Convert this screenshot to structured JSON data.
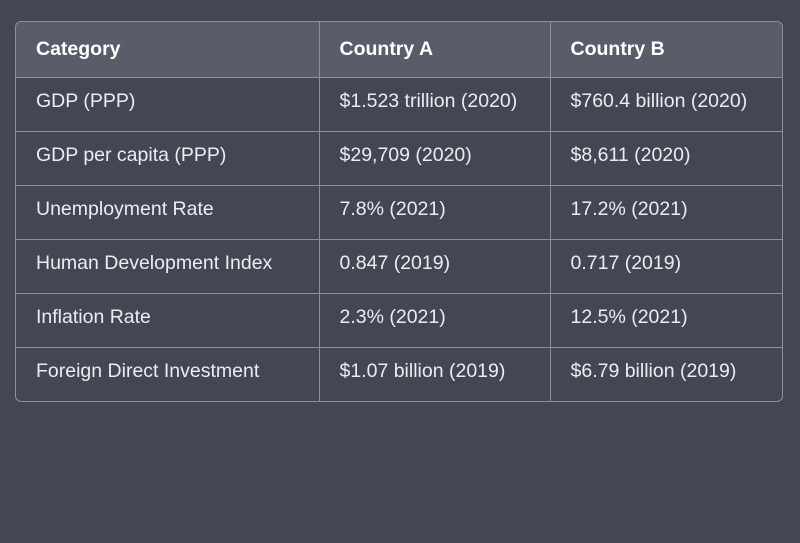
{
  "table": {
    "headers": [
      "Category",
      "Country A",
      "Country B"
    ],
    "rows": [
      [
        "GDP (PPP)",
        "$1.523 trillion (2020)",
        "$760.4 billion (2020)"
      ],
      [
        "GDP per capita (PPP)",
        "$29,709 (2020)",
        "$8,611 (2020)"
      ],
      [
        "Unemployment Rate",
        "7.8% (2021)",
        "17.2% (2021)"
      ],
      [
        "Human Development Index",
        "0.847 (2019)",
        "0.717 (2019)"
      ],
      [
        "Inflation Rate",
        "2.3% (2021)",
        "12.5% (2021)"
      ],
      [
        "Foreign Direct Investment",
        "$1.07 billion (2019)",
        "$6.79 billion (2019)"
      ]
    ]
  },
  "colors": {
    "background": "#444654",
    "header_background": "#5a5c6a",
    "border": "#8e8ea0",
    "text": "#ececf1"
  }
}
